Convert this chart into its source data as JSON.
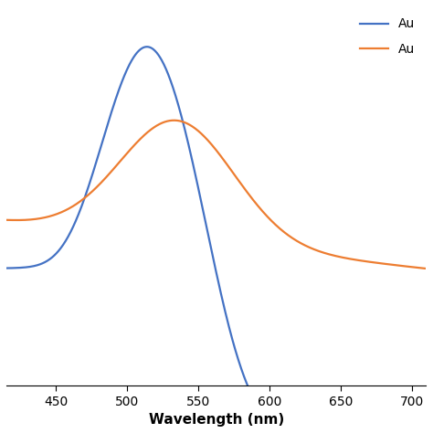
{
  "title": "",
  "xlabel": "Wavelength (nm)",
  "ylabel": "",
  "xlim": [
    415,
    710
  ],
  "ylim_auto": true,
  "legend_labels": [
    "Au  ",
    "Au  "
  ],
  "legend_colors": [
    "#4472C4",
    "#ED7D31"
  ],
  "blue_color": "#4472C4",
  "orange_color": "#ED7D31",
  "background_color": "#ffffff",
  "xticks": [
    450,
    500,
    550,
    600,
    650,
    700
  ]
}
